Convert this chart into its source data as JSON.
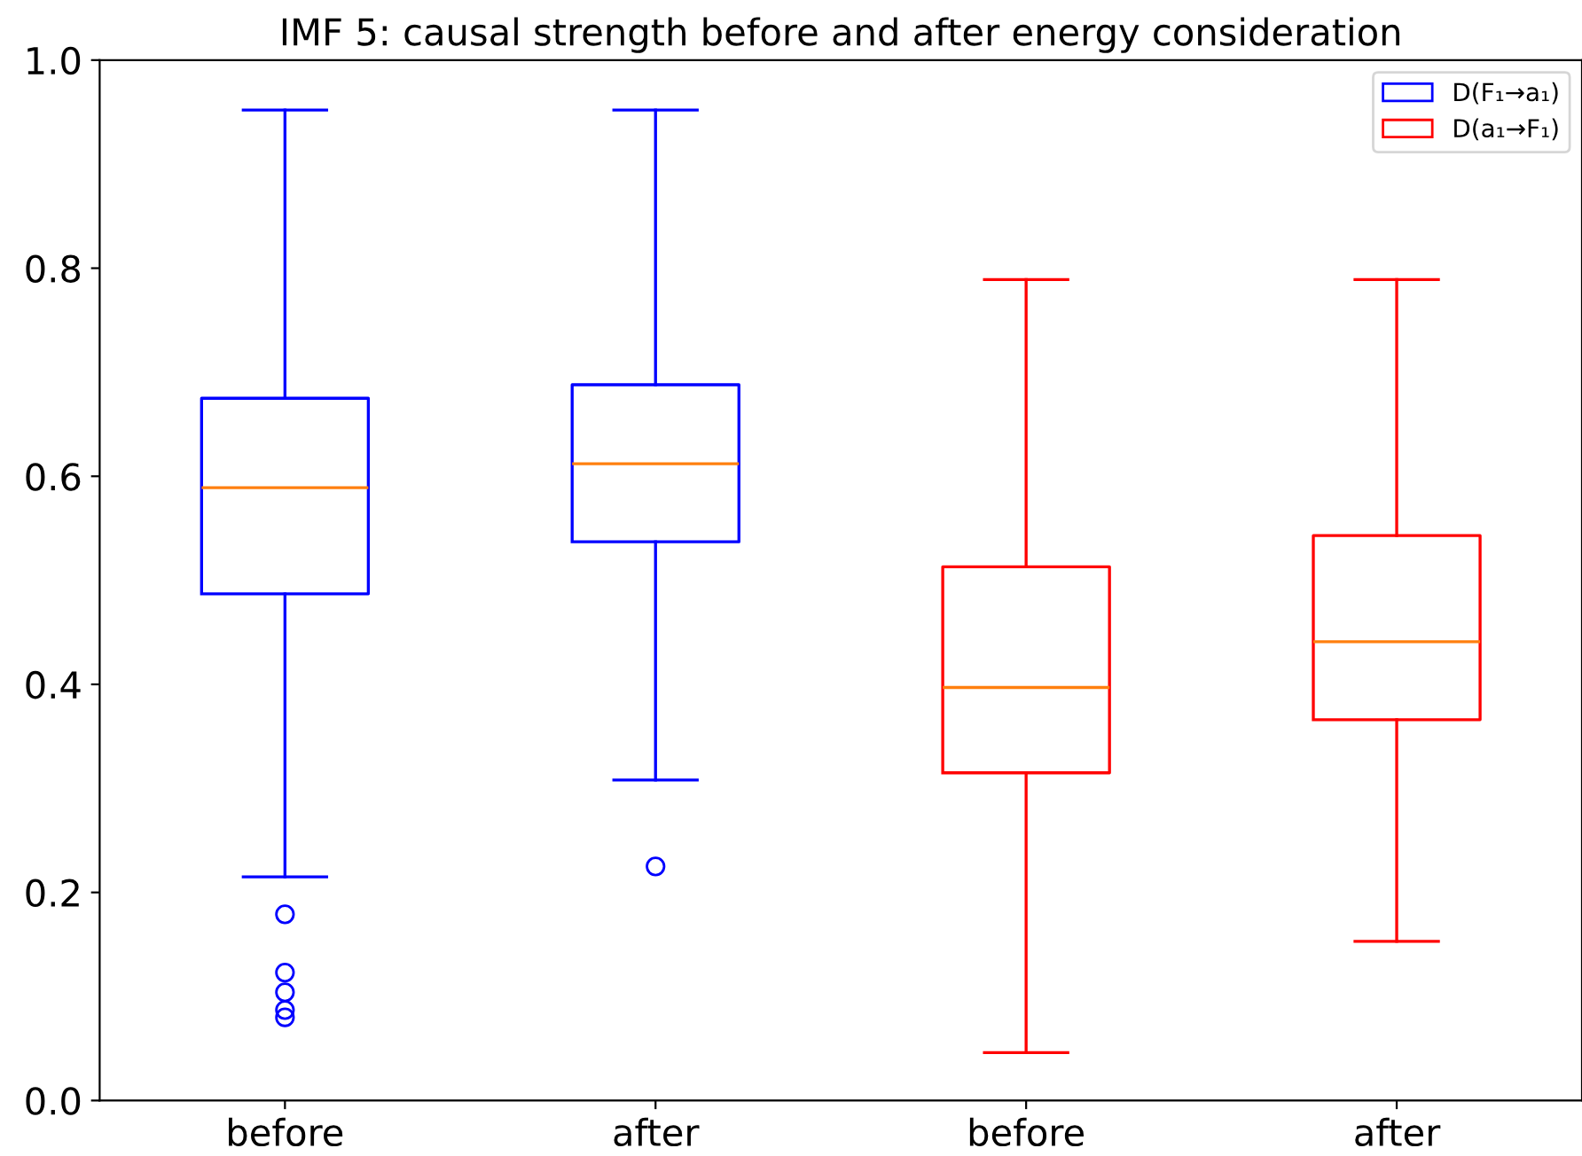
{
  "chart_data": {
    "type": "box",
    "title": "IMF 5: causal strength before and after energy consideration",
    "categories": [
      "before",
      "after",
      "before",
      "after"
    ],
    "series": [
      {
        "name": "D(F₁→a₁)",
        "color": "#0000ff",
        "boxes": [
          {
            "low": 0.215,
            "q1": 0.487,
            "median": 0.589,
            "q3": 0.675,
            "high": 0.952,
            "outliers": [
              0.179,
              0.123,
              0.104,
              0.087,
              0.08
            ]
          },
          {
            "low": 0.308,
            "q1": 0.537,
            "median": 0.612,
            "q3": 0.688,
            "high": 0.952,
            "outliers": [
              0.225
            ]
          },
          null,
          null
        ]
      },
      {
        "name": "D(a₁→F₁)",
        "color": "#ff0000",
        "boxes": [
          null,
          null,
          {
            "low": 0.046,
            "q1": 0.315,
            "median": 0.397,
            "q3": 0.513,
            "high": 0.789
          },
          {
            "low": 0.153,
            "q1": 0.366,
            "median": 0.441,
            "q3": 0.543,
            "high": 0.789
          }
        ]
      }
    ],
    "ylim": [
      0,
      1.0
    ],
    "yticks": [
      {
        "value": 0,
        "label": "0.0"
      },
      0.2,
      0.4,
      0.6,
      0.8,
      {
        "value": 1.0,
        "label": "1.0"
      }
    ],
    "legend": "top right",
    "grid": false
  }
}
